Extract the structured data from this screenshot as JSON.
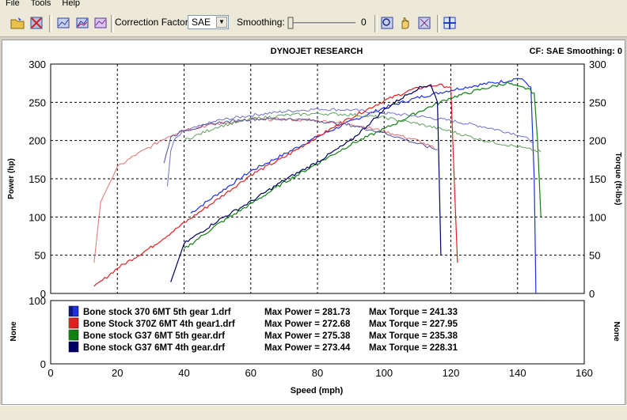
{
  "menu": {
    "file": "File",
    "tools": "Tools",
    "help": "Help"
  },
  "toolbar": {
    "correction_factor_label": "Correction Factor:",
    "correction_factor_value": "SAE",
    "smoothing_label": "Smoothing:",
    "smoothing_value": "0",
    "icons": [
      "open-icon",
      "clear-icon",
      "run-select-icon",
      "run-compare-icon",
      "run-overlay-icon",
      "zoom-icon",
      "pan-hand-icon",
      "zoom-out-icon",
      "grid-icon"
    ]
  },
  "colors": {
    "blue": "#2030e0",
    "red": "#e02020",
    "green": "#108010",
    "navy": "#000060",
    "light_blue": "#7070d0",
    "pink": "#e07070",
    "light_green": "#60a060"
  },
  "chart_data": {
    "type": "line",
    "title": "DYNOJET RESEARCH",
    "header_right": "CF: SAE  Smoothing: 0",
    "xlabel": "Speed (mph)",
    "ylabel_left": "Power (hp)",
    "ylabel_right": "Torque (ft-lbs)",
    "lower_ylabel_left": "None",
    "lower_ylabel_right": "None",
    "xlim": [
      0,
      160
    ],
    "ylim": [
      0,
      300
    ],
    "lower_ylim": [
      0,
      100
    ],
    "x_ticks": [
      "0",
      "20",
      "40",
      "60",
      "80",
      "100",
      "120",
      "140",
      "160"
    ],
    "y_ticks": [
      "0",
      "50",
      "100",
      "150",
      "200",
      "250",
      "300"
    ],
    "lower_y_ticks": [
      "0",
      "100"
    ],
    "grid": true,
    "legend": [
      {
        "name": "Bone stock 370 6MT 5th gear 1.drf",
        "max_power_label": "Max Power = 281.73",
        "max_torque_label": "Max Torque = 241.33",
        "color": "#2030e0"
      },
      {
        "name": "Bone Stock 370Z 6MT 4th gear1.drf",
        "max_power_label": "Max Power = 272.68",
        "max_torque_label": "Max Torque = 227.95",
        "color": "#e02020"
      },
      {
        "name": "Bone stock G37 6MT 5th gear.drf",
        "max_power_label": "Max Power = 275.38",
        "max_torque_label": "Max Torque = 235.38",
        "color": "#108010"
      },
      {
        "name": "Bone stock G37 6MT 4th gear.drf",
        "max_power_label": "Max Power = 273.44",
        "max_torque_label": "Max Torque = 228.31",
        "color": "#000060"
      }
    ],
    "series": [
      {
        "name": "Bone stock 370 6MT 5th gear 1.drf",
        "kind": "power",
        "color": "#2030e0",
        "x": [
          42,
          50,
          60,
          70,
          80,
          90,
          100,
          110,
          120,
          130,
          137,
          140,
          142,
          144,
          145,
          145.5
        ],
        "y": [
          105,
          130,
          160,
          182,
          205,
          225,
          243,
          256,
          266,
          274,
          278,
          281.73,
          278,
          270,
          150,
          0
        ]
      },
      {
        "name": "Bone stock 370 6MT 5th gear 1.drf",
        "kind": "torque",
        "color": "#7070d0",
        "x": [
          35,
          36,
          37,
          40,
          50,
          60,
          70,
          80,
          90,
          100,
          110,
          120,
          130,
          140,
          145
        ],
        "y": [
          140,
          185,
          200,
          212,
          226,
          233,
          238,
          241.33,
          240,
          236,
          232,
          226,
          218,
          208,
          198
        ]
      },
      {
        "name": "Bone Stock 370Z 6MT 4th gear1.drf",
        "kind": "power",
        "color": "#e02020",
        "x": [
          13,
          20,
          30,
          40,
          50,
          60,
          70,
          80,
          90,
          100,
          108,
          112,
          116,
          120,
          121,
          122
        ],
        "y": [
          8,
          33,
          60,
          92,
          123,
          155,
          178,
          205,
          230,
          252,
          266,
          270,
          272.68,
          270,
          150,
          40
        ]
      },
      {
        "name": "Bone Stock 370Z 6MT 4th gear1.drf",
        "kind": "torque",
        "color": "#e07070",
        "x": [
          13,
          15,
          20,
          25,
          30,
          35,
          40,
          50,
          60,
          70,
          80,
          90,
          100,
          110,
          115
        ],
        "y": [
          40,
          120,
          165,
          180,
          192,
          205,
          214,
          222,
          227,
          227.95,
          226,
          222,
          212,
          200,
          190
        ]
      },
      {
        "name": "Bone stock G37 6MT 5th gear.drf",
        "kind": "power",
        "color": "#108010",
        "x": [
          40,
          50,
          60,
          70,
          80,
          90,
          100,
          110,
          120,
          130,
          137,
          140,
          143,
          145,
          146,
          147
        ],
        "y": [
          58,
          90,
          117,
          145,
          170,
          195,
          215,
          237,
          256,
          268,
          275.38,
          270,
          268,
          262,
          200,
          100
        ]
      },
      {
        "name": "Bone stock G37 6MT 5th gear.drf",
        "kind": "torque",
        "color": "#60a060",
        "x": [
          40,
          50,
          60,
          70,
          80,
          90,
          100,
          110,
          120,
          130,
          140,
          147
        ],
        "y": [
          200,
          218,
          228,
          233,
          235.38,
          234,
          230,
          222,
          212,
          200,
          192,
          185
        ]
      },
      {
        "name": "Bone stock G37 6MT 4th gear.drf",
        "kind": "power",
        "color": "#000060",
        "x": [
          36,
          40,
          50,
          60,
          70,
          80,
          90,
          95,
          100,
          105,
          110,
          114,
          116,
          117
        ],
        "y": [
          15,
          65,
          95,
          120,
          148,
          172,
          200,
          220,
          240,
          255,
          268,
          273.44,
          250,
          50
        ]
      },
      {
        "name": "Bone stock G37 6MT 4th gear.drf",
        "kind": "torque",
        "color": "#5050a0",
        "x": [
          34,
          36,
          40,
          50,
          60,
          70,
          80,
          90,
          100,
          110,
          116
        ],
        "y": [
          170,
          205,
          213,
          223,
          228,
          228.31,
          226,
          220,
          210,
          196,
          188
        ]
      }
    ]
  }
}
